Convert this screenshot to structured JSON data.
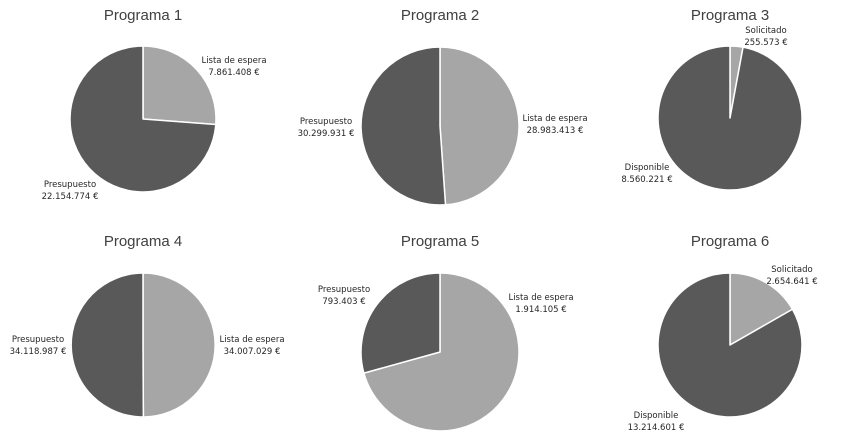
{
  "colors": {
    "dark_slice": "#595959",
    "light_slice": "#a6a6a6",
    "slice_border": "#ffffff",
    "title_text": "#404040",
    "label_text": "#262626"
  },
  "chart_data": [
    {
      "type": "pie",
      "title": "Programa 1",
      "slices": [
        {
          "name": "Lista de espera",
          "value": 7861408,
          "value_label": "7.861.408 €",
          "color": "light"
        },
        {
          "name": "Presupuesto",
          "value": 22154774,
          "value_label": "22.154.774 €",
          "color": "dark"
        }
      ]
    },
    {
      "type": "pie",
      "title": "Programa 2",
      "slices": [
        {
          "name": "Lista de espera",
          "value": 28983413,
          "value_label": "28.983.413 €",
          "color": "light"
        },
        {
          "name": "Presupuesto",
          "value": 30299931,
          "value_label": "30.299.931 €",
          "color": "dark"
        }
      ]
    },
    {
      "type": "pie",
      "title": "Programa 3",
      "slices": [
        {
          "name": "Solicitado",
          "value": 255573,
          "value_label": "255.573 €",
          "color": "light"
        },
        {
          "name": "Disponible",
          "value": 8560221,
          "value_label": "8.560.221 €",
          "color": "dark"
        }
      ]
    },
    {
      "type": "pie",
      "title": "Programa 4",
      "slices": [
        {
          "name": "Lista de espera",
          "value": 34007029,
          "value_label": "34.007.029 €",
          "color": "light"
        },
        {
          "name": "Presupuesto",
          "value": 34118987,
          "value_label": "34.118.987 €",
          "color": "dark"
        }
      ]
    },
    {
      "type": "pie",
      "title": "Programa 5",
      "slices": [
        {
          "name": "Lista de espera",
          "value": 1914105,
          "value_label": "1.914.105 €",
          "color": "light"
        },
        {
          "name": "Presupuesto",
          "value": 793403,
          "value_label": "793.403 €",
          "color": "dark"
        }
      ]
    },
    {
      "type": "pie",
      "title": "Programa 6",
      "slices": [
        {
          "name": "Solicitado",
          "value": 2654641,
          "value_label": "2.654.641 €",
          "color": "light"
        },
        {
          "name": "Disponible",
          "value": 13214601,
          "value_label": "13.214.601 €",
          "color": "dark"
        }
      ]
    }
  ]
}
